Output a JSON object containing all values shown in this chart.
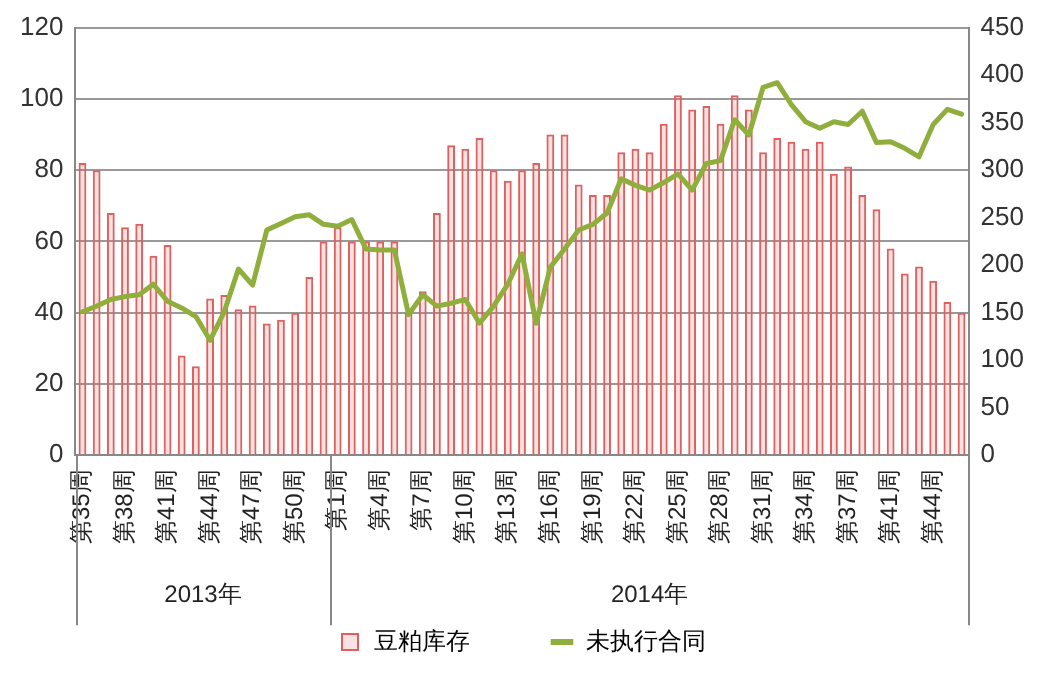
{
  "chart_data": {
    "type": "bar",
    "categories": [
      "第35周",
      null,
      null,
      "第38周",
      null,
      null,
      "第41周",
      null,
      null,
      "第44周",
      null,
      null,
      "第47周",
      null,
      null,
      "第50周",
      null,
      null,
      "第1周",
      null,
      null,
      "第4周",
      null,
      null,
      "第7周",
      null,
      null,
      "第10周",
      null,
      null,
      "第13周",
      null,
      null,
      "第16周",
      null,
      null,
      "第19周",
      null,
      null,
      "第22周",
      null,
      null,
      "第25周",
      null,
      null,
      "第28周",
      null,
      null,
      "第31周",
      null,
      null,
      "第34周",
      null,
      null,
      "第37周",
      null,
      null,
      "第41周",
      null,
      null,
      "第44周",
      null,
      null
    ],
    "series": [
      {
        "name": "豆粕库存",
        "color": "#e06060",
        "values": [
          82,
          80,
          68,
          64,
          65,
          56,
          59,
          28,
          25,
          44,
          45,
          41,
          42,
          37,
          38,
          40,
          50,
          60,
          64,
          60,
          60,
          60,
          60,
          40,
          46,
          68,
          87,
          86,
          89,
          80,
          77,
          80,
          82,
          90,
          90,
          76,
          73,
          73,
          85,
          86,
          85,
          93,
          101,
          97,
          98,
          93,
          101,
          97,
          85,
          89,
          88,
          86,
          88,
          79,
          81,
          73,
          69,
          58,
          51,
          53,
          49,
          43,
          40
        ]
      },
      {
        "name": "未执行合同",
        "type": "line",
        "axis": "y2",
        "color": "#8fae3c",
        "values": [
          151,
          157,
          164,
          167,
          169,
          180,
          162,
          155,
          146,
          121,
          151,
          196,
          179,
          237,
          244,
          251,
          253,
          243,
          241,
          248,
          217,
          216,
          216,
          148,
          169,
          157,
          160,
          164,
          139,
          157,
          180,
          212,
          139,
          198,
          217,
          237,
          243,
          255,
          291,
          284,
          279,
          287,
          296,
          279,
          307,
          310,
          353,
          337,
          387,
          392,
          369,
          351,
          344,
          351,
          348,
          362,
          329,
          330,
          323,
          314,
          348,
          364,
          359
        ]
      }
    ],
    "ylim": [
      0,
      120
    ],
    "yticks": [
      0,
      20,
      40,
      60,
      80,
      100,
      120
    ],
    "y2lim": [
      0,
      450
    ],
    "y2ticks": [
      0,
      50,
      100,
      150,
      200,
      250,
      300,
      350,
      400,
      450
    ],
    "annotations": [
      "2013年",
      "2014年"
    ],
    "grid": "y",
    "legend": "bottom",
    "marker": "none",
    "line_style": "solid"
  }
}
